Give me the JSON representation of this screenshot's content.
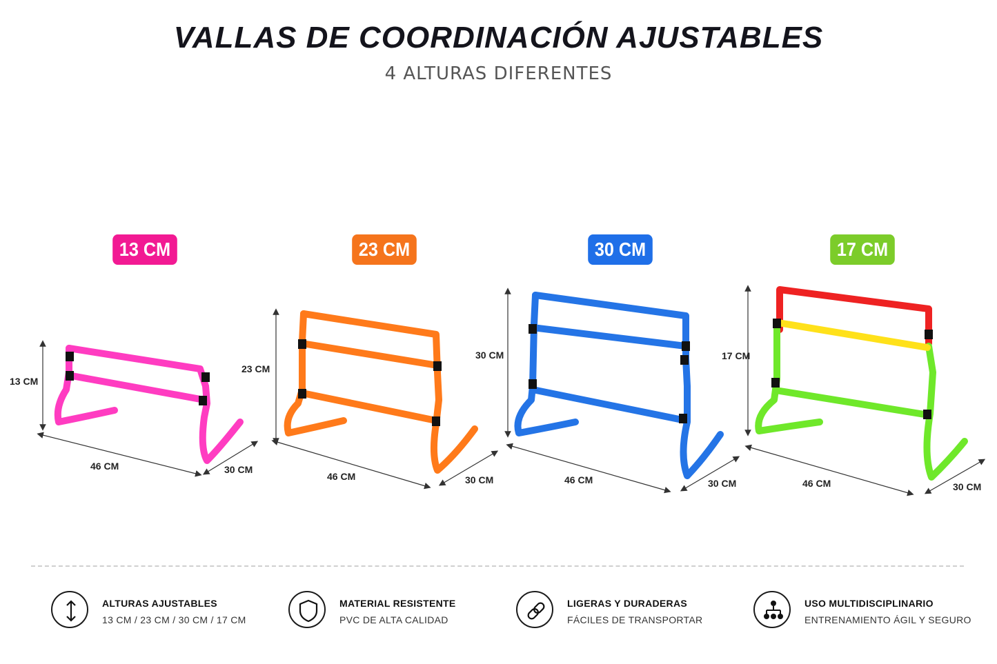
{
  "header": {
    "title": "VALLAS DE COORDINACIÓN AJUSTABLES",
    "subtitle": "4 ALTURAS DIFERENTES"
  },
  "hurdles": [
    {
      "badge": "13 CM",
      "color": "#f21a93",
      "height_label": "13 CM",
      "width_label": "46 CM",
      "depth_label": "30 CM"
    },
    {
      "badge": "23 CM",
      "color": "#f5741c",
      "height_label": "23 CM",
      "width_label": "46 CM",
      "depth_label": "30 CM"
    },
    {
      "badge": "30 CM",
      "color": "#1f6fe8",
      "height_label": "30 CM",
      "width_label": "46 CM",
      "depth_label": "30 CM"
    },
    {
      "badge": "17 CM",
      "color": "#6fcf1e",
      "height_label": "17 CM",
      "width_label": "46 CM",
      "depth_label": "30 CM"
    }
  ],
  "hurdle_colors": {
    "pink": "#ff3cc1",
    "orange": "#ff7a1a",
    "blue": "#2474e6",
    "green": "#6fe82a",
    "red": "#ee2222",
    "yellow": "#ffe11a"
  },
  "features": [
    {
      "icon": "up-down-arrow-icon",
      "title": "ALTURAS AJUSTABLES",
      "subtitle": "13 CM / 23 CM / 30 CM / 17 CM"
    },
    {
      "icon": "shield-icon",
      "title": "MATERIAL RESISTENTE",
      "subtitle": "PVC DE ALTA CALIDAD"
    },
    {
      "icon": "link-icon",
      "title": "LIGERAS Y DURADERAS",
      "subtitle": "FÁCILES DE TRANSPORTAR"
    },
    {
      "icon": "network-icon",
      "title": "USO MULTIDISCIPLINARIO",
      "subtitle": "ENTRENAMIENTO ÁGIL Y SEGURO"
    }
  ]
}
